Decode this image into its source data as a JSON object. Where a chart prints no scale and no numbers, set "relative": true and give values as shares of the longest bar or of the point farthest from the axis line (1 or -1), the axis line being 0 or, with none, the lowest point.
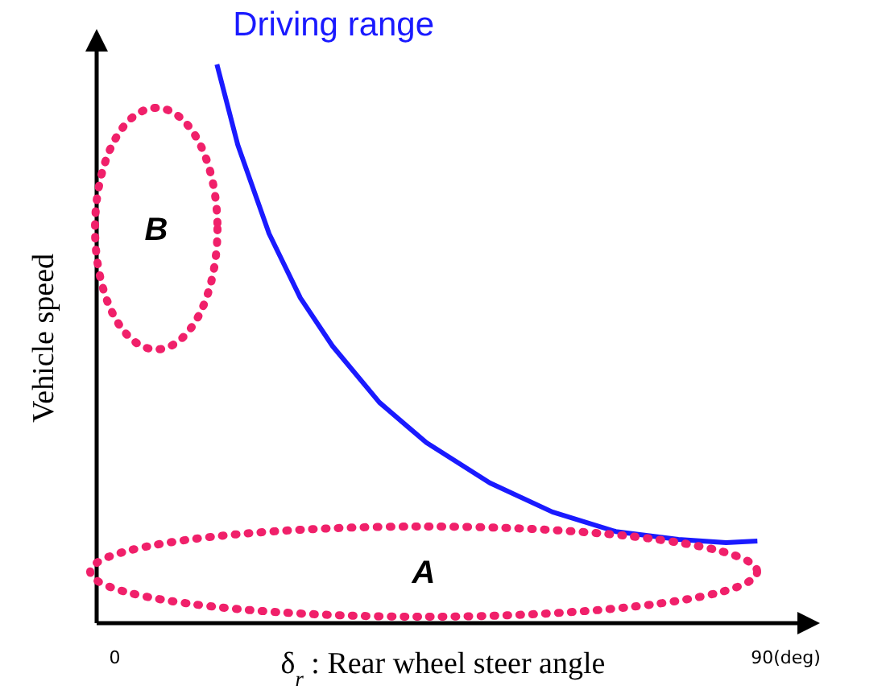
{
  "chart_data": {
    "type": "line",
    "relative": true,
    "xlabel": "δ$_{r}$ : Rear wheel steer angle",
    "ylabel": "Vehicle speed",
    "xlim": [
      -2,
      92
    ],
    "xticks": [
      0,
      {
        "value": 90,
        "label": "90(deg)"
      }
    ],
    "tick_labels": "x",
    "marker": "none",
    "line_style": "solid",
    "series": [
      {
        "name": "Driving range",
        "color": "#1a1aff",
        "x": [
          13.7,
          16.5,
          20.7,
          24.9,
          29.2,
          35.5,
          41.8,
          50.3,
          58.7,
          67.2,
          75.6,
          82.0,
          86.2
        ],
        "values": [
          1,
          0.856,
          0.697,
          0.582,
          0.496,
          0.395,
          0.323,
          0.251,
          0.199,
          0.164,
          0.15,
          0.144,
          0.147
        ]
      }
    ],
    "annotations": [
      "A",
      "B"
    ]
  }
}
